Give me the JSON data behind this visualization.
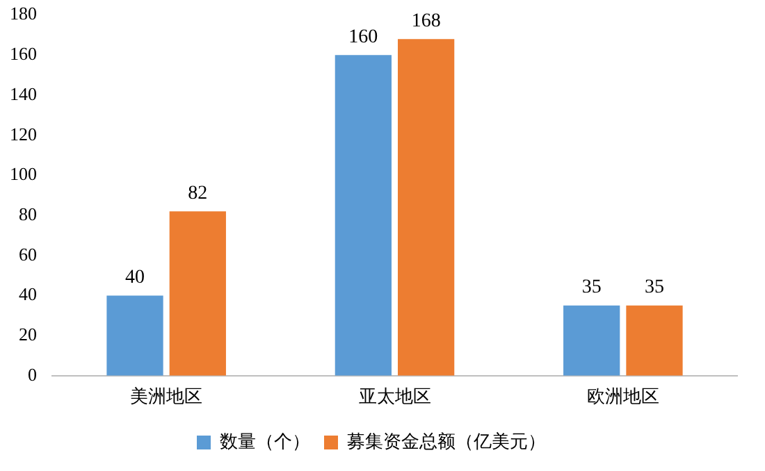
{
  "chart_data": {
    "type": "bar",
    "categories": [
      "美洲地区",
      "亚太地区",
      "欧洲地区"
    ],
    "series": [
      {
        "name": "数量（个）",
        "color": "#5b9bd5",
        "values": [
          40,
          160,
          35
        ]
      },
      {
        "name": "募集资金总额（亿美元）",
        "color": "#ed7d31",
        "values": [
          82,
          168,
          35
        ]
      }
    ],
    "ylim": [
      0,
      180
    ],
    "yticks": [
      0,
      20,
      40,
      60,
      80,
      100,
      120,
      140,
      160,
      180
    ],
    "grid": false,
    "legend": "bottom",
    "data_labels": true
  }
}
